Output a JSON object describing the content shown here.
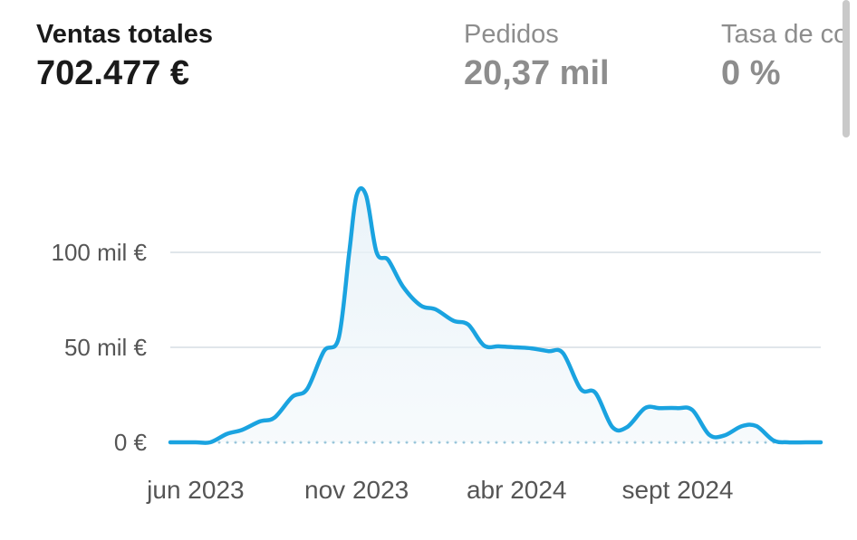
{
  "metrics": [
    {
      "label": "Ventas totales",
      "value": "702.477 €"
    },
    {
      "label": "Pedidos",
      "value": "20,37 mil"
    },
    {
      "label": "Tasa de co",
      "value": "0 %"
    }
  ],
  "colors": {
    "line": "#1aa3e0",
    "grid": "#d5dde3",
    "baseline_dots": "#8fc0d6",
    "area": "#e8f2f8"
  },
  "chart_data": {
    "type": "area",
    "title": "",
    "xlabel": "",
    "ylabel": "",
    "ylim": [
      0,
      100000
    ],
    "y_ticks": [
      {
        "value": 100000,
        "label": "100 mil €"
      },
      {
        "value": 50000,
        "label": "50 mil €"
      },
      {
        "value": 0,
        "label": "0 €"
      }
    ],
    "x_ticks": [
      {
        "value": "2023-06",
        "label": "jun 2023"
      },
      {
        "value": "2023-11",
        "label": "nov 2023"
      },
      {
        "value": "2024-04",
        "label": "abr 2024"
      },
      {
        "value": "2024-09",
        "label": "sept 2024"
      }
    ],
    "x_range": [
      "2023-05-08",
      "2025-01-15"
    ],
    "grid": true,
    "legend": "none",
    "series": [
      {
        "x": [
          "2023-05-08",
          "2023-06-01",
          "2023-06-15",
          "2023-07-01",
          "2023-07-15",
          "2023-08-01",
          "2023-08-15",
          "2023-09-01",
          "2023-09-15",
          "2023-10-01",
          "2023-10-15",
          "2023-10-25",
          "2023-11-01",
          "2023-11-10",
          "2023-11-20",
          "2023-12-01",
          "2023-12-15",
          "2024-01-01",
          "2024-01-15",
          "2024-02-01",
          "2024-02-15",
          "2024-03-01",
          "2024-03-15",
          "2024-04-01",
          "2024-04-15",
          "2024-05-01",
          "2024-05-15",
          "2024-06-01",
          "2024-06-15",
          "2024-07-01",
          "2024-07-15",
          "2024-08-01",
          "2024-08-15",
          "2024-09-01",
          "2024-09-15",
          "2024-10-01",
          "2024-10-15",
          "2024-11-01",
          "2024-11-15",
          "2024-12-01",
          "2024-12-15",
          "2025-01-01",
          "2025-01-15"
        ],
        "values": [
          0,
          0,
          0,
          4500,
          6500,
          11000,
          13000,
          24000,
          28000,
          48000,
          55000,
          100000,
          130000,
          130000,
          100000,
          96000,
          82000,
          72000,
          70000,
          64000,
          62000,
          51000,
          50500,
          50000,
          49500,
          48000,
          47000,
          28000,
          26000,
          8000,
          8000,
          18000,
          18000,
          18000,
          17000,
          4000,
          3500,
          8500,
          8500,
          1000,
          0,
          0,
          0
        ]
      }
    ]
  }
}
